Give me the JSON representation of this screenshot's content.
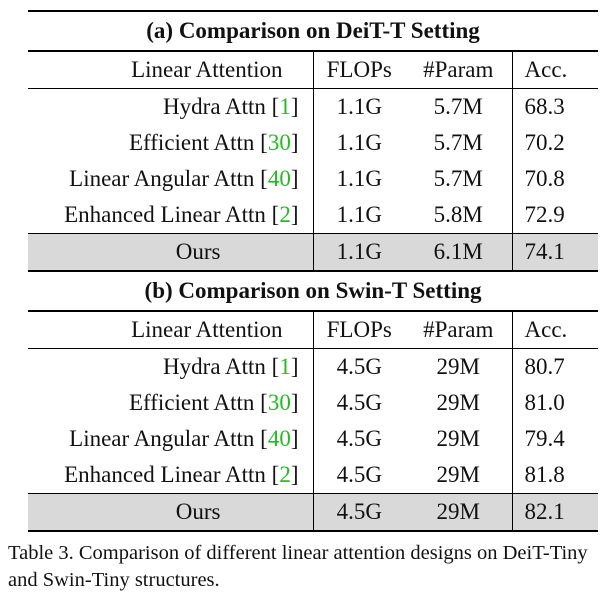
{
  "tables": [
    {
      "title": "(a) Comparison on DeiT-T Setting",
      "header": [
        "Linear Attention",
        "FLOPs",
        "#Param",
        "Acc."
      ],
      "rows": [
        {
          "name": "Hydra Attn",
          "cite": "1",
          "flops": "1.1G",
          "param": "5.7M",
          "acc": "68.3"
        },
        {
          "name": "Efficient Attn",
          "cite": "30",
          "flops": "1.1G",
          "param": "5.7M",
          "acc": "70.2"
        },
        {
          "name": "Linear Angular Attn",
          "cite": "40",
          "flops": "1.1G",
          "param": "5.7M",
          "acc": "70.8"
        },
        {
          "name": "Enhanced Linear Attn",
          "cite": "2",
          "flops": "1.1G",
          "param": "5.8M",
          "acc": "72.9"
        }
      ],
      "ours": {
        "name": "Ours",
        "flops": "1.1G",
        "param": "6.1M",
        "acc": "74.1"
      }
    },
    {
      "title": "(b) Comparison on Swin-T Setting",
      "header": [
        "Linear Attention",
        "FLOPs",
        "#Param",
        "Acc."
      ],
      "rows": [
        {
          "name": "Hydra Attn",
          "cite": "1",
          "flops": "4.5G",
          "param": "29M",
          "acc": "80.7"
        },
        {
          "name": "Efficient Attn",
          "cite": "30",
          "flops": "4.5G",
          "param": "29M",
          "acc": "81.0"
        },
        {
          "name": "Linear Angular Attn",
          "cite": "40",
          "flops": "4.5G",
          "param": "29M",
          "acc": "79.4"
        },
        {
          "name": "Enhanced Linear Attn",
          "cite": "2",
          "flops": "4.5G",
          "param": "29M",
          "acc": "81.8"
        }
      ],
      "ours": {
        "name": "Ours",
        "flops": "4.5G",
        "param": "29M",
        "acc": "82.1"
      }
    }
  ],
  "caption": "Table 3. Comparison of different linear attention designs on DeiT-Tiny and Swin-Tiny structures.",
  "colors": {
    "cite": "#22bb22",
    "highlight": "#d9d9d9"
  }
}
